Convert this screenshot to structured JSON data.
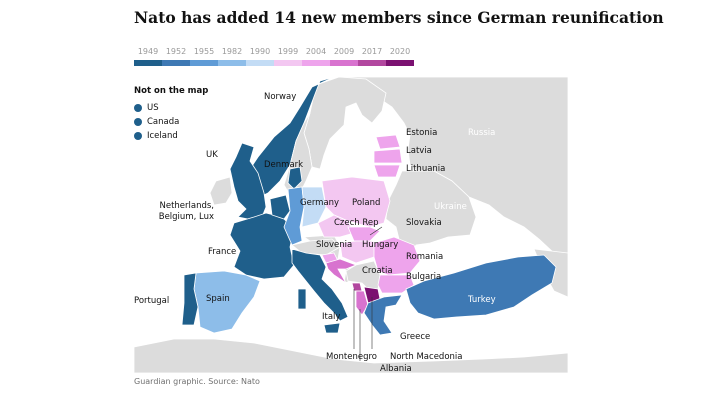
{
  "title": "Nato has added 14 new members since German reunification",
  "legend": {
    "years": [
      "1949",
      "1952",
      "1955",
      "1982",
      "1990",
      "1999",
      "2004",
      "2009",
      "2017",
      "2020"
    ],
    "colors": [
      "#1f5f8b",
      "#3e79b4",
      "#5f9bd6",
      "#8dbde9",
      "#c3dcf5",
      "#f3c7f1",
      "#eea4ec",
      "#d873cf",
      "#b2479f",
      "#7b1171"
    ]
  },
  "not_on_map": {
    "heading": "Not on the map",
    "items": [
      "US",
      "Canada",
      "Iceland"
    ],
    "color": "#1f5f8b"
  },
  "map_labels": {
    "norway": "Norway",
    "uk": "UK",
    "denmark": "Denmark",
    "netherlands": "Netherlands,",
    "netherlands2": "Belgium, Lux",
    "germany": "Germany",
    "france": "France",
    "portugal": "Portugal",
    "spain": "Spain",
    "italy": "Italy",
    "estonia": "Estonia",
    "latvia": "Latvia",
    "lithuania": "Lithuania",
    "poland": "Poland",
    "czech": "Czech Rep",
    "slovakia": "Slovakia",
    "hungary": "Hungary",
    "slovenia": "Slovenia",
    "croatia": "Croatia",
    "romania": "Romania",
    "bulgaria": "Bulgaria",
    "turkey": "Turkey",
    "greece": "Greece",
    "montenegro": "Montenegro",
    "albania": "Albania",
    "north_macedonia": "North Macedonia",
    "russia": "Russia",
    "ukraine": "Ukraine"
  },
  "source": "Guardian graphic. Source: Nato"
}
